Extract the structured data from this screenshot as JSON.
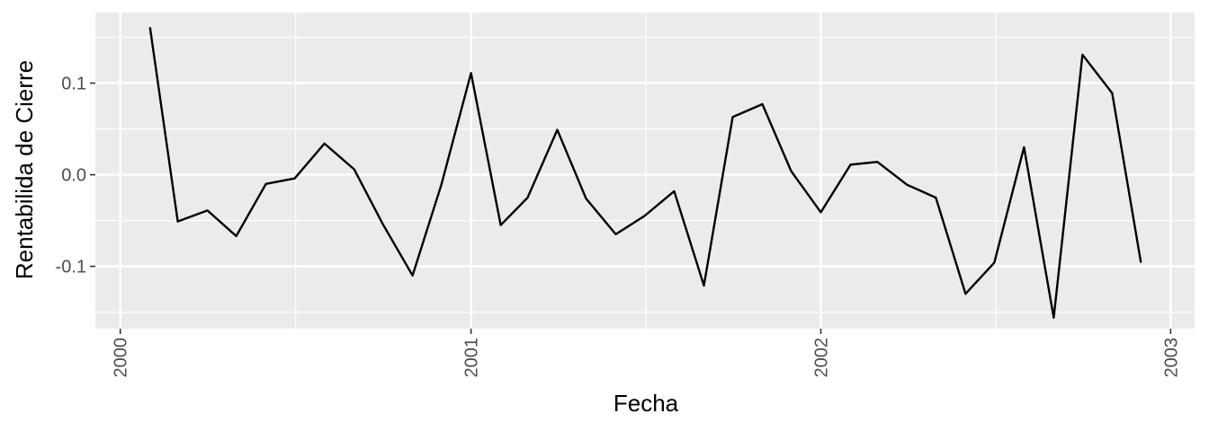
{
  "chart_data": {
    "type": "line",
    "title": "",
    "xlabel": "Fecha",
    "ylabel": "Rentabilida de Cierre",
    "x_axis_type": "date",
    "xlim": [
      "1999-12-06",
      "2003-01-26"
    ],
    "ylim": [
      -0.168,
      0.177
    ],
    "x_ticks": [
      "2000-01-01",
      "2001-01-01",
      "2002-01-01",
      "2003-01-01"
    ],
    "x_tick_labels": [
      "2000",
      "2001",
      "2002",
      "2003"
    ],
    "y_ticks": [
      -0.1,
      0.0,
      0.1
    ],
    "y_tick_labels": [
      "-0.1",
      "0.0",
      "0.1"
    ],
    "grid": true,
    "legend": "none",
    "colors": {
      "panel": "#ebebeb",
      "grid": "#ffffff",
      "line": "#000000",
      "text": "#4d4d4d",
      "tick": "#333333"
    },
    "series": [
      {
        "x": [
          "2000-02-01",
          "2000-03-01",
          "2000-04-01",
          "2000-05-01",
          "2000-06-01",
          "2000-07-01",
          "2000-08-01",
          "2000-09-01",
          "2000-10-01",
          "2000-11-01",
          "2000-12-01",
          "2001-01-01",
          "2001-02-01",
          "2001-03-01",
          "2001-04-01",
          "2001-05-01",
          "2001-06-01",
          "2001-07-01",
          "2001-08-01",
          "2001-09-01",
          "2001-10-01",
          "2001-11-01",
          "2001-12-01",
          "2002-01-01",
          "2002-02-01",
          "2002-03-01",
          "2002-04-01",
          "2002-05-01",
          "2002-06-01",
          "2002-07-01",
          "2002-08-01",
          "2002-09-01",
          "2002-10-01",
          "2002-11-01",
          "2002-12-01"
        ],
        "values": [
          0.161,
          -0.051,
          -0.039,
          -0.067,
          -0.01,
          -0.004,
          0.034,
          0.006,
          -0.054,
          -0.11,
          -0.011,
          0.111,
          -0.055,
          -0.025,
          0.049,
          -0.026,
          -0.065,
          -0.045,
          -0.018,
          -0.121,
          0.063,
          0.077,
          0.004,
          -0.041,
          0.011,
          0.014,
          -0.011,
          -0.025,
          -0.13,
          -0.096,
          0.03,
          -0.156,
          0.131,
          0.089,
          -0.096
        ]
      }
    ]
  }
}
